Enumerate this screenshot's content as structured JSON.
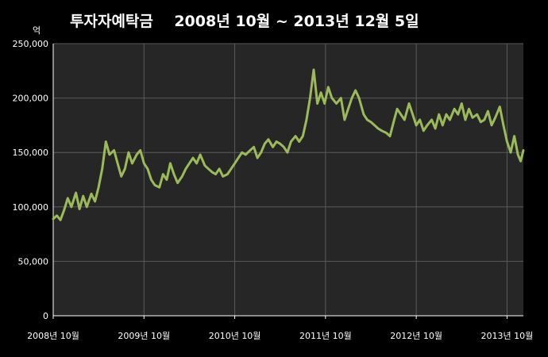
{
  "chart_data": {
    "type": "line",
    "title": "투자자예탁금    2008년 10월 ~ 2013년 12월 5일",
    "unit_label": "억",
    "ylim": [
      0,
      250000
    ],
    "y_ticks": [
      "0",
      "50,000",
      "100,000",
      "150,000",
      "200,000",
      "250,000"
    ],
    "x_ticks": [
      "2008년 10월",
      "2009년 10월",
      "2010년 10월",
      "2011년 10월",
      "2012년 10월",
      "2013년 10월"
    ],
    "grid": true,
    "colors": {
      "background": "#000000",
      "plot_area": "#262626",
      "line": "#9bbb59",
      "grid": "#5a5a5a"
    },
    "series": [
      {
        "values": [
          [
            2008.75,
            89000
          ],
          [
            2008.79,
            92000
          ],
          [
            2008.83,
            88000
          ],
          [
            2008.87,
            97000
          ],
          [
            2008.91,
            108000
          ],
          [
            2008.95,
            100000
          ],
          [
            2009.0,
            113000
          ],
          [
            2009.04,
            98000
          ],
          [
            2009.08,
            110000
          ],
          [
            2009.12,
            100000
          ],
          [
            2009.17,
            112000
          ],
          [
            2009.21,
            105000
          ],
          [
            2009.25,
            118000
          ],
          [
            2009.29,
            135000
          ],
          [
            2009.33,
            160000
          ],
          [
            2009.37,
            148000
          ],
          [
            2009.42,
            152000
          ],
          [
            2009.46,
            140000
          ],
          [
            2009.5,
            128000
          ],
          [
            2009.54,
            135000
          ],
          [
            2009.58,
            150000
          ],
          [
            2009.62,
            140000
          ],
          [
            2009.67,
            148000
          ],
          [
            2009.71,
            152000
          ],
          [
            2009.75,
            140000
          ],
          [
            2009.79,
            135000
          ],
          [
            2009.83,
            125000
          ],
          [
            2009.87,
            120000
          ],
          [
            2009.92,
            118000
          ],
          [
            2009.96,
            130000
          ],
          [
            2010.0,
            125000
          ],
          [
            2010.04,
            140000
          ],
          [
            2010.08,
            130000
          ],
          [
            2010.12,
            122000
          ],
          [
            2010.17,
            128000
          ],
          [
            2010.21,
            135000
          ],
          [
            2010.25,
            140000
          ],
          [
            2010.29,
            145000
          ],
          [
            2010.33,
            140000
          ],
          [
            2010.37,
            148000
          ],
          [
            2010.42,
            138000
          ],
          [
            2010.46,
            135000
          ],
          [
            2010.5,
            132000
          ],
          [
            2010.54,
            130000
          ],
          [
            2010.58,
            135000
          ],
          [
            2010.62,
            128000
          ],
          [
            2010.67,
            130000
          ],
          [
            2010.71,
            135000
          ],
          [
            2010.75,
            140000
          ],
          [
            2010.79,
            145000
          ],
          [
            2010.83,
            150000
          ],
          [
            2010.87,
            148000
          ],
          [
            2010.92,
            152000
          ],
          [
            2010.96,
            155000
          ],
          [
            2011.0,
            145000
          ],
          [
            2011.04,
            150000
          ],
          [
            2011.08,
            158000
          ],
          [
            2011.12,
            162000
          ],
          [
            2011.17,
            155000
          ],
          [
            2011.21,
            160000
          ],
          [
            2011.25,
            158000
          ],
          [
            2011.29,
            155000
          ],
          [
            2011.33,
            150000
          ],
          [
            2011.37,
            160000
          ],
          [
            2011.42,
            165000
          ],
          [
            2011.46,
            160000
          ],
          [
            2011.5,
            165000
          ],
          [
            2011.54,
            180000
          ],
          [
            2011.58,
            200000
          ],
          [
            2011.62,
            226000
          ],
          [
            2011.66,
            195000
          ],
          [
            2011.7,
            205000
          ],
          [
            2011.74,
            195000
          ],
          [
            2011.78,
            210000
          ],
          [
            2011.82,
            200000
          ],
          [
            2011.87,
            195000
          ],
          [
            2011.92,
            200000
          ],
          [
            2011.96,
            180000
          ],
          [
            2012.0,
            190000
          ],
          [
            2012.04,
            200000
          ],
          [
            2012.08,
            207000
          ],
          [
            2012.12,
            200000
          ],
          [
            2012.17,
            185000
          ],
          [
            2012.21,
            180000
          ],
          [
            2012.25,
            178000
          ],
          [
            2012.29,
            175000
          ],
          [
            2012.33,
            172000
          ],
          [
            2012.37,
            170000
          ],
          [
            2012.42,
            168000
          ],
          [
            2012.46,
            165000
          ],
          [
            2012.5,
            178000
          ],
          [
            2012.54,
            190000
          ],
          [
            2012.58,
            185000
          ],
          [
            2012.62,
            180000
          ],
          [
            2012.67,
            195000
          ],
          [
            2012.71,
            185000
          ],
          [
            2012.75,
            175000
          ],
          [
            2012.79,
            180000
          ],
          [
            2012.83,
            170000
          ],
          [
            2012.87,
            175000
          ],
          [
            2012.92,
            180000
          ],
          [
            2012.96,
            172000
          ],
          [
            2013.0,
            185000
          ],
          [
            2013.04,
            175000
          ],
          [
            2013.08,
            185000
          ],
          [
            2013.12,
            180000
          ],
          [
            2013.17,
            190000
          ],
          [
            2013.21,
            185000
          ],
          [
            2013.25,
            195000
          ],
          [
            2013.29,
            180000
          ],
          [
            2013.33,
            190000
          ],
          [
            2013.37,
            182000
          ],
          [
            2013.42,
            185000
          ],
          [
            2013.46,
            178000
          ],
          [
            2013.5,
            180000
          ],
          [
            2013.54,
            188000
          ],
          [
            2013.58,
            175000
          ],
          [
            2013.62,
            182000
          ],
          [
            2013.67,
            192000
          ],
          [
            2013.71,
            175000
          ],
          [
            2013.75,
            160000
          ],
          [
            2013.79,
            150000
          ],
          [
            2013.83,
            165000
          ],
          [
            2013.87,
            148000
          ],
          [
            2013.9,
            142000
          ],
          [
            2013.93,
            152000
          ]
        ]
      }
    ]
  }
}
